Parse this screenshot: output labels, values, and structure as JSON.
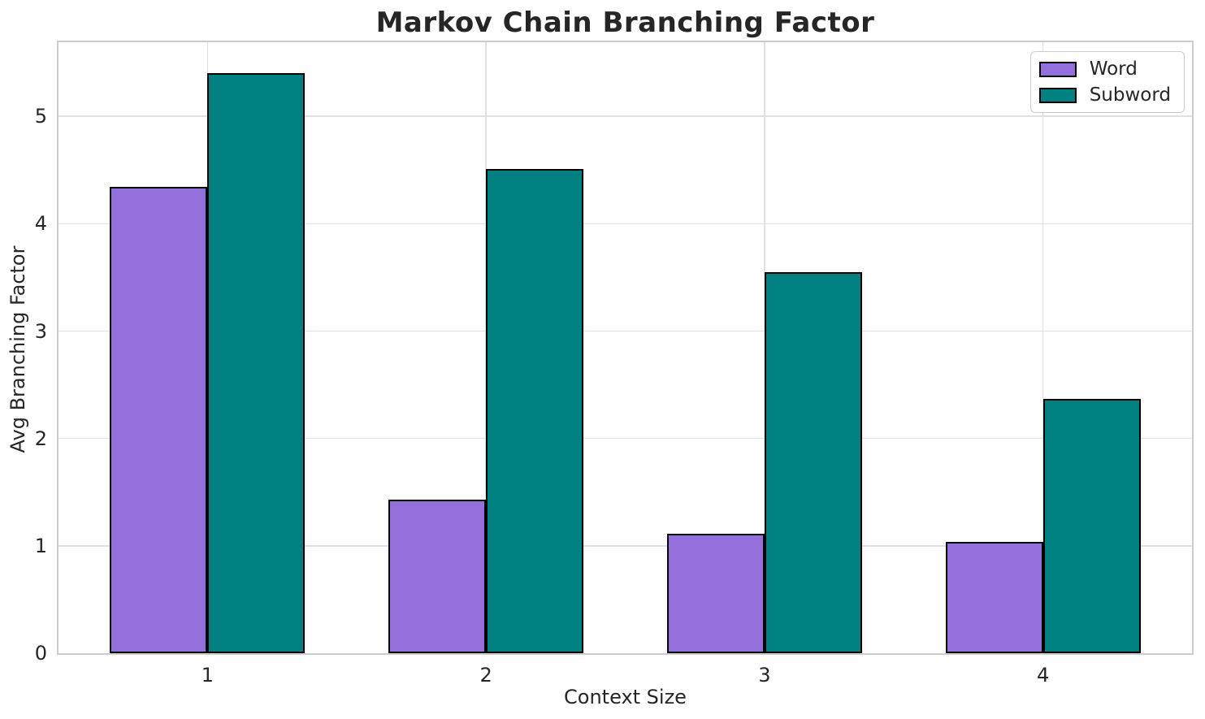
{
  "chart_data": {
    "type": "bar",
    "title": "Markov Chain Branching Factor",
    "xlabel": "Context Size",
    "ylabel": "Avg Branching Factor",
    "categories": [
      "1",
      "2",
      "3",
      "4"
    ],
    "series": [
      {
        "name": "Word",
        "color": "#9370db",
        "values": [
          4.34,
          1.43,
          1.11,
          1.04
        ]
      },
      {
        "name": "Subword",
        "color": "#008080",
        "values": [
          5.4,
          4.51,
          3.55,
          2.37
        ]
      }
    ],
    "ylim": [
      0,
      5.69
    ],
    "yticks": [
      0,
      1,
      2,
      3,
      4,
      5
    ],
    "xlim": [
      0.465,
      4.535
    ],
    "bar_width": 0.35,
    "bar_edge_color": "#000000",
    "grid": "both",
    "grid_color": "#e0e0e0",
    "spine_color": "#cccccc",
    "text_color": "#262626",
    "legend_position": "upper right"
  }
}
